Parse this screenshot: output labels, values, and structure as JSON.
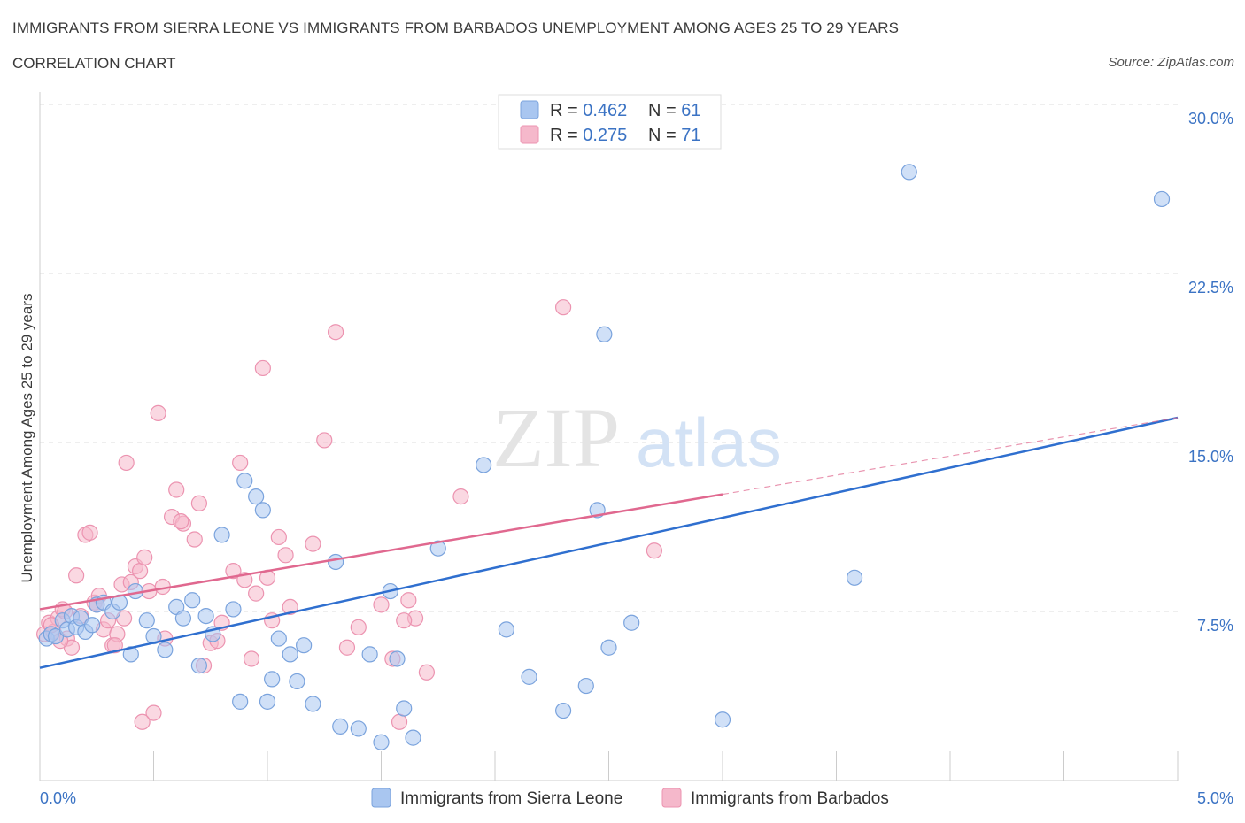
{
  "header": {
    "title": "IMMIGRANTS FROM SIERRA LEONE VS IMMIGRANTS FROM BARBADOS UNEMPLOYMENT AMONG AGES 25 TO 29 YEARS",
    "subtitle": "CORRELATION CHART",
    "source": "Source: ZipAtlas.com"
  },
  "watermark": {
    "zip": "ZIP",
    "atlas": "atlas"
  },
  "colors": {
    "blue_fill": "#a9c6f0",
    "blue_stroke": "#7aa3dd",
    "blue_line": "#2f6fcf",
    "pink_fill": "#f5b8cb",
    "pink_stroke": "#ec93b0",
    "pink_line": "#e0688f",
    "tick_text": "#3b73c4",
    "grid": "#dddddd"
  },
  "legend": {
    "rows": [
      {
        "r_label": "R = ",
        "r_value": "0.462",
        "n_label": "N = ",
        "n_value": "61",
        "series": "blue"
      },
      {
        "r_label": "R = ",
        "r_value": "0.275",
        "n_label": "N = ",
        "n_value": "71",
        "series": "pink"
      }
    ]
  },
  "bottom_legend": [
    {
      "label": "Immigrants from Sierra Leone",
      "series": "blue"
    },
    {
      "label": "Immigrants from Barbados",
      "series": "pink"
    }
  ],
  "chart_data": {
    "type": "scatter",
    "title": "IMMIGRANTS FROM SIERRA LEONE VS IMMIGRANTS FROM BARBADOS UNEMPLOYMENT AMONG AGES 25 TO 29 YEARS",
    "xlabel": "",
    "ylabel": "Unemployment Among Ages 25 to 29 years",
    "xlim": [
      0,
      5
    ],
    "ylim": [
      0,
      30
    ],
    "x_tick_labels": [
      "0.0%",
      "5.0%"
    ],
    "y_ticks": [
      7.5,
      15.0,
      22.5,
      30.0
    ],
    "y_tick_labels": [
      "7.5%",
      "15.0%",
      "22.5%",
      "30.0%"
    ],
    "grid": true,
    "series": [
      {
        "name": "Immigrants from Sierra Leone",
        "color": "blue",
        "trend": {
          "x0": 0,
          "y0": 5.0,
          "x1": 5,
          "y1": 16.1,
          "dashed_from": null
        },
        "points": [
          [
            0.03,
            6.3
          ],
          [
            0.05,
            6.5
          ],
          [
            0.07,
            6.4
          ],
          [
            0.1,
            7.1
          ],
          [
            0.12,
            6.7
          ],
          [
            0.14,
            7.3
          ],
          [
            0.16,
            6.8
          ],
          [
            0.18,
            7.2
          ],
          [
            0.2,
            6.6
          ],
          [
            0.23,
            6.9
          ],
          [
            0.25,
            7.8
          ],
          [
            0.28,
            7.9
          ],
          [
            0.32,
            7.5
          ],
          [
            0.35,
            7.9
          ],
          [
            0.42,
            8.4
          ],
          [
            0.47,
            7.1
          ],
          [
            0.5,
            6.4
          ],
          [
            0.55,
            5.8
          ],
          [
            0.6,
            7.7
          ],
          [
            0.63,
            7.2
          ],
          [
            0.67,
            8.0
          ],
          [
            0.7,
            5.1
          ],
          [
            0.73,
            7.3
          ],
          [
            0.76,
            6.5
          ],
          [
            0.8,
            10.9
          ],
          [
            0.85,
            7.6
          ],
          [
            0.88,
            3.5
          ],
          [
            0.95,
            12.6
          ],
          [
            0.98,
            12.0
          ],
          [
            1.0,
            3.5
          ],
          [
            1.02,
            4.5
          ],
          [
            1.05,
            6.3
          ],
          [
            1.1,
            5.6
          ],
          [
            1.13,
            4.4
          ],
          [
            1.16,
            6.0
          ],
          [
            1.2,
            3.4
          ],
          [
            1.3,
            9.7
          ],
          [
            1.32,
            2.4
          ],
          [
            1.4,
            2.3
          ],
          [
            1.45,
            5.6
          ],
          [
            1.5,
            1.7
          ],
          [
            1.54,
            8.4
          ],
          [
            1.57,
            5.4
          ],
          [
            1.6,
            3.2
          ],
          [
            1.64,
            1.9
          ],
          [
            1.75,
            10.3
          ],
          [
            1.95,
            14.0
          ],
          [
            2.05,
            6.7
          ],
          [
            2.15,
            4.6
          ],
          [
            2.3,
            3.1
          ],
          [
            2.4,
            4.2
          ],
          [
            2.45,
            12.0
          ],
          [
            2.5,
            5.9
          ],
          [
            2.6,
            7.0
          ],
          [
            2.48,
            19.8
          ],
          [
            3.0,
            2.7
          ],
          [
            3.58,
            9.0
          ],
          [
            3.82,
            27.0
          ],
          [
            4.93,
            25.8
          ],
          [
            0.4,
            5.6
          ],
          [
            0.9,
            13.3
          ]
        ]
      },
      {
        "name": "Immigrants from Barbados",
        "color": "pink",
        "trend": {
          "x0": 0,
          "y0": 7.6,
          "x1": 5,
          "y1": 16.1,
          "dashed_from": 3.0
        },
        "points": [
          [
            0.02,
            6.5
          ],
          [
            0.04,
            7.0
          ],
          [
            0.06,
            6.6
          ],
          [
            0.08,
            7.2
          ],
          [
            0.1,
            7.6
          ],
          [
            0.12,
            6.3
          ],
          [
            0.14,
            5.9
          ],
          [
            0.16,
            9.1
          ],
          [
            0.18,
            7.3
          ],
          [
            0.2,
            10.9
          ],
          [
            0.22,
            11.0
          ],
          [
            0.24,
            7.9
          ],
          [
            0.26,
            8.2
          ],
          [
            0.28,
            6.7
          ],
          [
            0.3,
            7.1
          ],
          [
            0.32,
            6.0
          ],
          [
            0.34,
            6.5
          ],
          [
            0.36,
            8.7
          ],
          [
            0.38,
            14.1
          ],
          [
            0.4,
            8.8
          ],
          [
            0.42,
            9.5
          ],
          [
            0.44,
            9.3
          ],
          [
            0.46,
            9.9
          ],
          [
            0.48,
            8.4
          ],
          [
            0.5,
            3.0
          ],
          [
            0.52,
            16.3
          ],
          [
            0.54,
            8.6
          ],
          [
            0.58,
            11.7
          ],
          [
            0.6,
            12.9
          ],
          [
            0.63,
            11.4
          ],
          [
            0.68,
            10.7
          ],
          [
            0.7,
            12.3
          ],
          [
            0.72,
            5.1
          ],
          [
            0.75,
            6.1
          ],
          [
            0.78,
            6.2
          ],
          [
            0.85,
            9.3
          ],
          [
            0.88,
            14.1
          ],
          [
            0.9,
            8.9
          ],
          [
            0.93,
            5.4
          ],
          [
            0.95,
            8.3
          ],
          [
            0.98,
            18.3
          ],
          [
            1.0,
            9.0
          ],
          [
            1.05,
            10.8
          ],
          [
            1.08,
            10.0
          ],
          [
            1.1,
            7.7
          ],
          [
            1.2,
            10.5
          ],
          [
            1.25,
            15.1
          ],
          [
            1.3,
            19.9
          ],
          [
            1.4,
            6.8
          ],
          [
            1.5,
            7.8
          ],
          [
            1.55,
            5.4
          ],
          [
            1.58,
            2.6
          ],
          [
            1.62,
            8.0
          ],
          [
            1.65,
            7.2
          ],
          [
            1.7,
            4.8
          ],
          [
            1.85,
            12.6
          ],
          [
            2.3,
            21.0
          ],
          [
            2.7,
            10.2
          ],
          [
            0.45,
            2.6
          ],
          [
            0.05,
            6.9
          ],
          [
            0.09,
            6.2
          ],
          [
            0.11,
            7.5
          ],
          [
            0.25,
            7.8
          ],
          [
            0.33,
            6.0
          ],
          [
            0.37,
            7.2
          ],
          [
            0.55,
            6.3
          ],
          [
            0.62,
            11.5
          ],
          [
            0.8,
            7.0
          ],
          [
            1.02,
            7.1
          ],
          [
            1.35,
            5.9
          ],
          [
            1.6,
            7.1
          ]
        ]
      }
    ]
  }
}
